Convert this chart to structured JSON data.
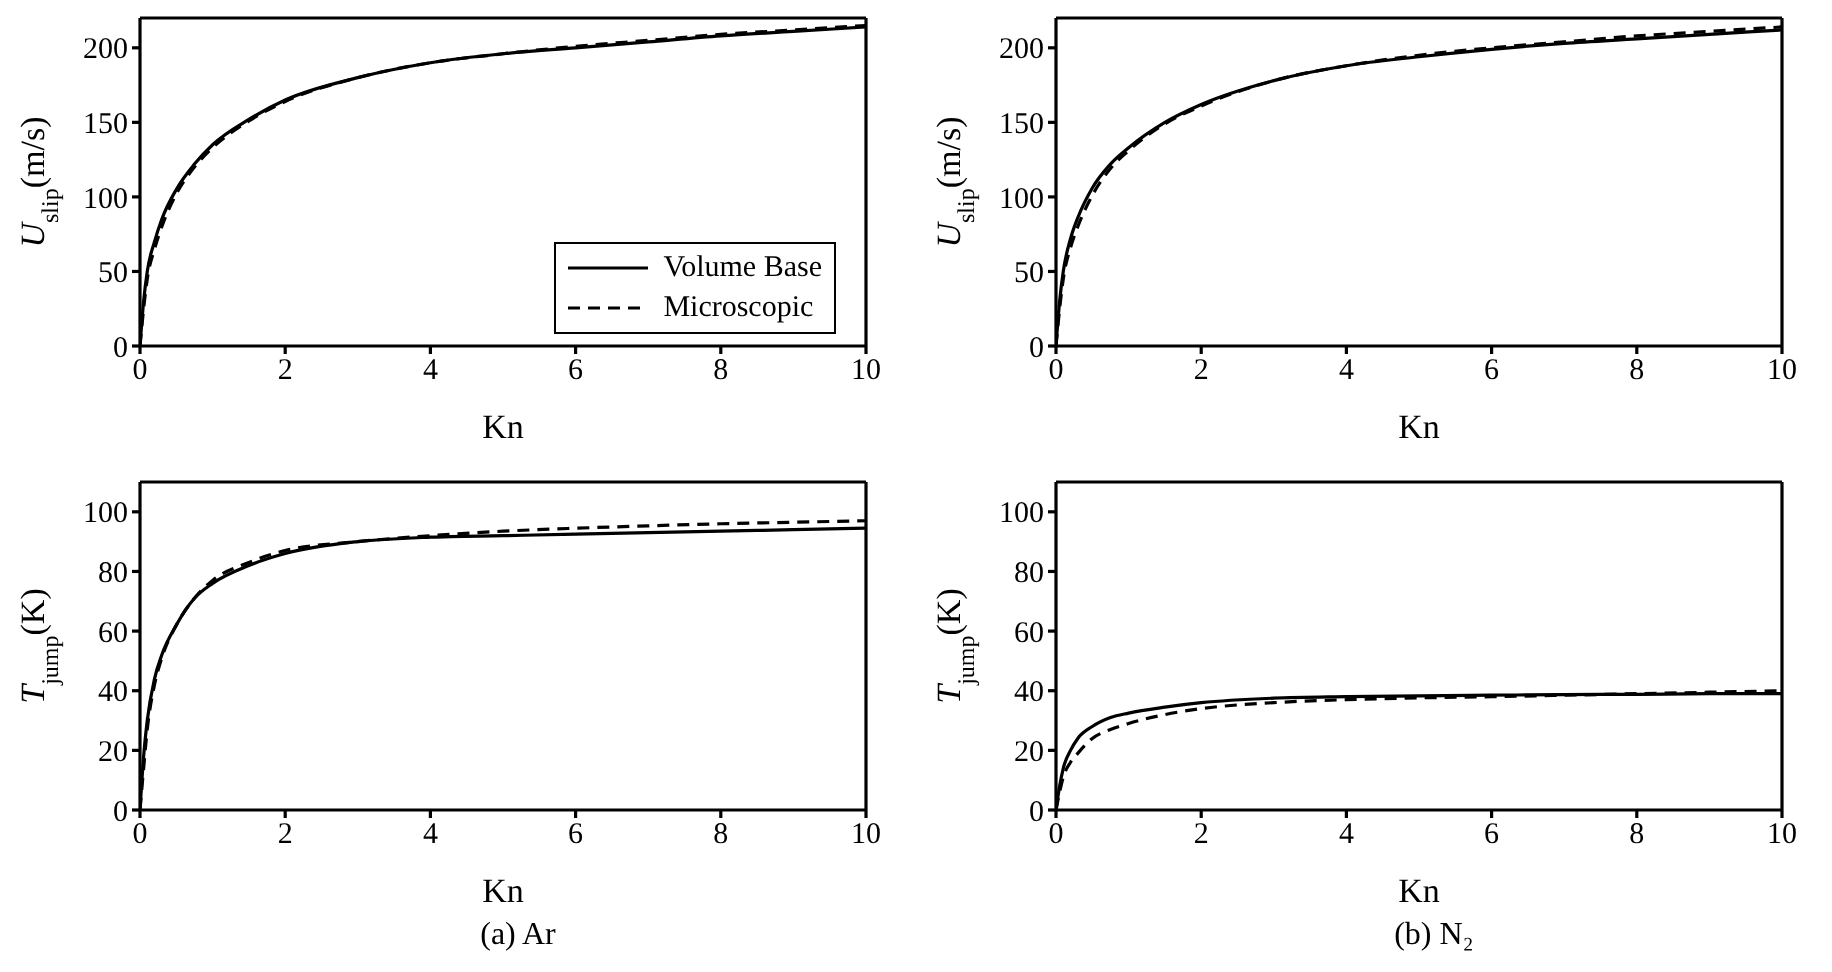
{
  "chart_data": [
    {
      "type": "line",
      "xlabel": "Kn",
      "ylabel": "U$_{slip}$(m/s)",
      "x": [
        0,
        0.05,
        0.1,
        0.2,
        0.3,
        0.5,
        0.75,
        1,
        1.5,
        2,
        3,
        4,
        5,
        6,
        7,
        8,
        9,
        10
      ],
      "xlim": [
        0,
        10
      ],
      "xticks": [
        0,
        2,
        4,
        6,
        8,
        10
      ],
      "ylim": [
        0,
        220
      ],
      "yticks": [
        0,
        50,
        100,
        150,
        200
      ],
      "legend": "bottom right",
      "marker": "none",
      "grid": false,
      "series": [
        {
          "name": "Volume Base",
          "color": "#000000",
          "line_style": "solid",
          "values": [
            0,
            30,
            50,
            70,
            85,
            105,
            122,
            135,
            152,
            165,
            180,
            190,
            196,
            200,
            204,
            208,
            211,
            214
          ]
        },
        {
          "name": "Microscopic",
          "color": "#000000",
          "line_style": "dashed",
          "values": [
            0,
            25,
            45,
            65,
            80,
            102,
            120,
            133,
            151,
            164,
            180,
            190,
            196,
            201,
            205,
            209,
            212,
            215
          ]
        }
      ]
    },
    {
      "type": "line",
      "xlabel": "Kn",
      "ylabel": "U$_{slip}$(m/s)",
      "x": [
        0,
        0.05,
        0.1,
        0.2,
        0.3,
        0.5,
        0.75,
        1,
        1.5,
        2,
        3,
        4,
        5,
        6,
        7,
        8,
        9,
        10
      ],
      "xlim": [
        0,
        10
      ],
      "xticks": [
        0,
        2,
        4,
        6,
        8,
        10
      ],
      "ylim": [
        0,
        220
      ],
      "yticks": [
        0,
        50,
        100,
        150,
        200
      ],
      "marker": "none",
      "grid": false,
      "series": [
        {
          "color": "#000000",
          "line_style": "solid",
          "values": [
            0,
            30,
            50,
            72,
            86,
            106,
            122,
            133,
            150,
            162,
            178,
            188,
            194,
            199,
            203,
            206,
            209,
            212
          ]
        },
        {
          "color": "#000000",
          "line_style": "dashed",
          "values": [
            0,
            25,
            45,
            66,
            80,
            101,
            119,
            131,
            149,
            161,
            178,
            188,
            195,
            200,
            204,
            208,
            211,
            214
          ]
        }
      ]
    },
    {
      "type": "line",
      "xlabel": "Kn",
      "ylabel": "T$_{jump}$(K)",
      "annotations": [
        "(a) Ar"
      ],
      "x": [
        0,
        0.05,
        0.1,
        0.2,
        0.3,
        0.5,
        0.75,
        1,
        1.5,
        2,
        3,
        4,
        5,
        6,
        7,
        8,
        9,
        10
      ],
      "xlim": [
        0,
        10
      ],
      "xticks": [
        0,
        2,
        4,
        6,
        8,
        10
      ],
      "ylim": [
        0,
        110
      ],
      "yticks": [
        0,
        20,
        40,
        60,
        80,
        100
      ],
      "marker": "none",
      "grid": false,
      "series": [
        {
          "color": "#000000",
          "line_style": "solid",
          "values": [
            0,
            18,
            30,
            44,
            52,
            62,
            71,
            76,
            82,
            86,
            90,
            91.5,
            92,
            92.5,
            93,
            93.5,
            94,
            94.5
          ]
        },
        {
          "color": "#000000",
          "line_style": "dashed",
          "values": [
            0,
            14,
            27,
            42,
            51,
            62,
            71,
            77,
            83,
            87,
            90,
            92,
            93.5,
            94.5,
            95.3,
            96,
            96.5,
            97
          ]
        }
      ]
    },
    {
      "type": "line",
      "xlabel": "Kn",
      "ylabel": "T$_{jump}$(K)",
      "annotations": [
        "(b) N₂"
      ],
      "x": [
        0,
        0.05,
        0.1,
        0.2,
        0.3,
        0.5,
        0.75,
        1,
        1.5,
        2,
        3,
        4,
        5,
        6,
        7,
        8,
        9,
        10
      ],
      "xlim": [
        0,
        10
      ],
      "xticks": [
        0,
        2,
        4,
        6,
        8,
        10
      ],
      "ylim": [
        0,
        110
      ],
      "yticks": [
        0,
        20,
        40,
        60,
        80,
        100
      ],
      "marker": "none",
      "grid": false,
      "series": [
        {
          "color": "#000000",
          "line_style": "solid",
          "values": [
            0,
            8,
            14,
            20,
            24,
            28,
            31,
            32.5,
            34.5,
            36,
            37.5,
            38,
            38.3,
            38.5,
            38.7,
            38.8,
            39,
            39
          ]
        },
        {
          "color": "#000000",
          "line_style": "dashed",
          "values": [
            0,
            6,
            11,
            16,
            19,
            24,
            27,
            29,
            32,
            34,
            36,
            37,
            37.6,
            38,
            38.5,
            39,
            39.5,
            40
          ]
        }
      ]
    }
  ]
}
